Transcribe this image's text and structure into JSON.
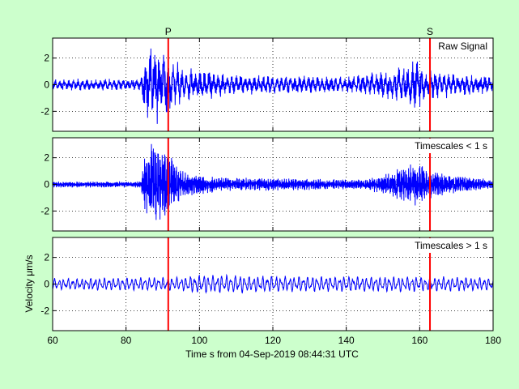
{
  "chart_data": [
    {
      "type": "line",
      "legend": "Raw Signal",
      "x_range": [
        60,
        180
      ],
      "ylim": [
        -3.5,
        3.5
      ],
      "yticks": [
        -2,
        0,
        2
      ],
      "grid": true,
      "series_color": "#0000ff",
      "envelope": [
        {
          "x": 60,
          "amp": 0.35
        },
        {
          "x": 84,
          "amp": 0.35
        },
        {
          "x": 85,
          "amp": 1.8
        },
        {
          "x": 87,
          "amp": 2.6
        },
        {
          "x": 91,
          "amp": 2.0
        },
        {
          "x": 95,
          "amp": 1.1
        },
        {
          "x": 110,
          "amp": 0.6
        },
        {
          "x": 140,
          "amp": 0.5
        },
        {
          "x": 153,
          "amp": 0.9
        },
        {
          "x": 159,
          "amp": 1.5
        },
        {
          "x": 163,
          "amp": 0.9
        },
        {
          "x": 180,
          "amp": 0.5
        }
      ]
    },
    {
      "type": "line",
      "legend": "Timescales < 1 s",
      "x_range": [
        60,
        180
      ],
      "ylim": [
        -3.5,
        3.5
      ],
      "yticks": [
        -2,
        0,
        2
      ],
      "grid": true,
      "series_color": "#0000ff",
      "envelope": [
        {
          "x": 60,
          "amp": 0.2
        },
        {
          "x": 84,
          "amp": 0.2
        },
        {
          "x": 85,
          "amp": 1.8
        },
        {
          "x": 87,
          "amp": 3.0
        },
        {
          "x": 91,
          "amp": 2.2
        },
        {
          "x": 95,
          "amp": 0.9
        },
        {
          "x": 105,
          "amp": 0.45
        },
        {
          "x": 145,
          "amp": 0.3
        },
        {
          "x": 152,
          "amp": 0.8
        },
        {
          "x": 159,
          "amp": 1.4
        },
        {
          "x": 164,
          "amp": 0.8
        },
        {
          "x": 180,
          "amp": 0.3
        }
      ]
    },
    {
      "type": "line",
      "legend": "Timescales > 1 s",
      "x_range": [
        60,
        180
      ],
      "ylim": [
        -3.5,
        3.5
      ],
      "yticks": [
        -2,
        0,
        2
      ],
      "grid": true,
      "series_color": "#0000ff",
      "envelope": [
        {
          "x": 60,
          "amp": 0.45
        },
        {
          "x": 95,
          "amp": 0.55
        },
        {
          "x": 100,
          "amp": 0.75
        },
        {
          "x": 130,
          "amp": 0.6
        },
        {
          "x": 160,
          "amp": 0.6
        },
        {
          "x": 180,
          "amp": 0.5
        }
      ]
    }
  ],
  "xaxis": {
    "ticks": [
      60,
      80,
      100,
      120,
      140,
      160,
      180
    ],
    "label": "Time s from 04-Sep-2019 08:44:31 UTC"
  },
  "ylabel": "Velocity μm/s",
  "phases": [
    {
      "name": "P",
      "x": 91.5
    },
    {
      "name": "S",
      "x": 162.8
    }
  ],
  "colors": {
    "background": "#ccffcc",
    "trace": "#0000ff",
    "phase_line": "#ff0000",
    "axes_bg": "#ffffff"
  }
}
